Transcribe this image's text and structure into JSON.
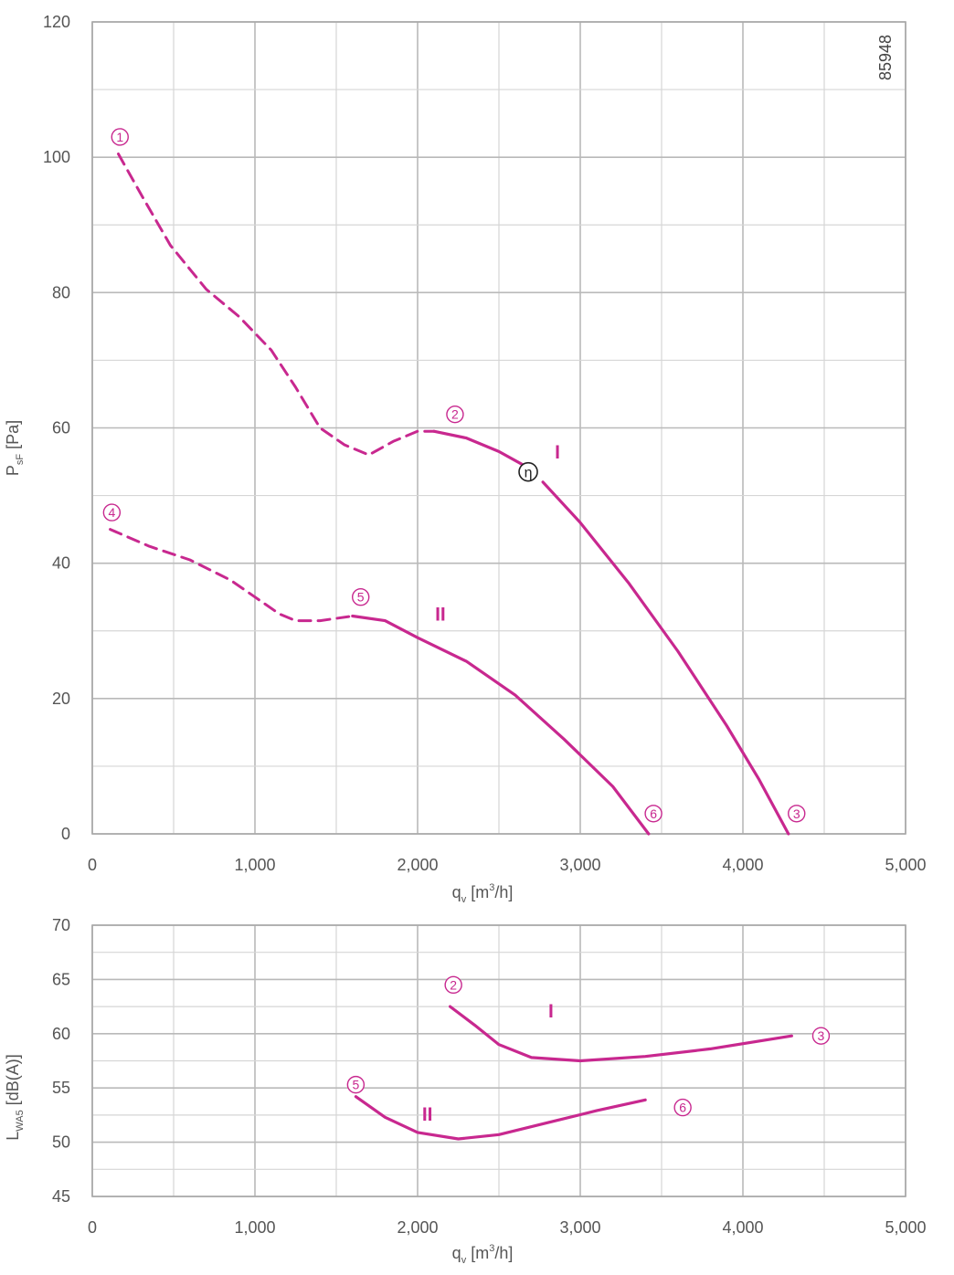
{
  "chart_data": [
    {
      "type": "line",
      "id": "pressure",
      "xlabel": {
        "main": "q",
        "sub": "v",
        "unit_pre": " [m",
        "unit_sup": "3",
        "unit_post": "/h]"
      },
      "ylabel": {
        "main": "P",
        "sub": "sF",
        "unit": " [Pa]"
      },
      "xlim": [
        0,
        5000
      ],
      "ylim": [
        0,
        120
      ],
      "xticks": [
        0,
        1000,
        2000,
        3000,
        4000,
        5000
      ],
      "xtick_labels": [
        "0",
        "1,000",
        "2,000",
        "3,000",
        "4,000",
        "5,000"
      ],
      "yticks": [
        0,
        20,
        40,
        60,
        80,
        100,
        120
      ],
      "ytick_labels": [
        "0",
        "20",
        "40",
        "60",
        "80",
        "100",
        "120"
      ],
      "grid": true,
      "minor_grid": true,
      "annotation": "85948",
      "efficiency_marker": {
        "label": "η",
        "x": 2680,
        "y": 53.5
      },
      "series": [
        {
          "name": "I",
          "color": "#c8288f",
          "label_at": [
            2860,
            55.5
          ],
          "dashed": [
            [
              160,
              100.5
            ],
            [
              300,
              94.5
            ],
            [
              480,
              87
            ],
            [
              700,
              80.5
            ],
            [
              900,
              76.5
            ],
            [
              1100,
              71.5
            ],
            [
              1250,
              66
            ],
            [
              1400,
              60
            ],
            [
              1550,
              57.5
            ],
            [
              1700,
              56
            ],
            [
              1850,
              58
            ],
            [
              2000,
              59.5
            ],
            [
              2100,
              59.5
            ]
          ],
          "solid": [
            [
              2100,
              59.5
            ],
            [
              2300,
              58.5
            ],
            [
              2500,
              56.5
            ],
            [
              2650,
              54.5
            ]
          ],
          "solid2": [
            [
              2770,
              52
            ],
            [
              3000,
              46
            ],
            [
              3300,
              37
            ],
            [
              3600,
              27
            ],
            [
              3900,
              16
            ],
            [
              4100,
              8
            ],
            [
              4280,
              0
            ]
          ],
          "markers": [
            {
              "label": "1",
              "x": 170,
              "y": 103
            },
            {
              "label": "2",
              "x": 2230,
              "y": 62
            },
            {
              "label": "3",
              "x": 4330,
              "y": 3
            }
          ]
        },
        {
          "name": "II",
          "color": "#c8288f",
          "label_at": [
            2140,
            31.5
          ],
          "dashed": [
            [
              110,
              45
            ],
            [
              350,
              42.5
            ],
            [
              600,
              40.5
            ],
            [
              850,
              37.5
            ],
            [
              1000,
              35
            ],
            [
              1150,
              32.5
            ],
            [
              1250,
              31.5
            ],
            [
              1400,
              31.5
            ],
            [
              1600,
              32.2
            ]
          ],
          "solid": [
            [
              1600,
              32.2
            ],
            [
              1800,
              31.5
            ],
            [
              2000,
              29
            ],
            [
              2300,
              25.5
            ],
            [
              2600,
              20.5
            ],
            [
              2900,
              14
            ],
            [
              3200,
              7
            ],
            [
              3420,
              0
            ]
          ],
          "markers": [
            {
              "label": "4",
              "x": 120,
              "y": 47.5
            },
            {
              "label": "5",
              "x": 1650,
              "y": 35
            },
            {
              "label": "6",
              "x": 3450,
              "y": 3
            }
          ]
        }
      ]
    },
    {
      "type": "line",
      "id": "sound",
      "xlabel": {
        "main": "q",
        "sub": "v",
        "unit_pre": " [m",
        "unit_sup": "3",
        "unit_post": "/h]"
      },
      "ylabel": {
        "main": "L",
        "sub": "WA5",
        "unit": " [dB(A)]"
      },
      "xlim": [
        0,
        5000
      ],
      "ylim": [
        45,
        70
      ],
      "xticks": [
        0,
        1000,
        2000,
        3000,
        4000,
        5000
      ],
      "xtick_labels": [
        "0",
        "1,000",
        "2,000",
        "3,000",
        "4,000",
        "5,000"
      ],
      "yticks": [
        45,
        50,
        55,
        60,
        65,
        70
      ],
      "ytick_labels": [
        "45",
        "50",
        "55",
        "60",
        "65",
        "70"
      ],
      "grid": true,
      "minor_grid": true,
      "series": [
        {
          "name": "I",
          "color": "#c8288f",
          "label_at": [
            2820,
            61.5
          ],
          "solid": [
            [
              2200,
              62.5
            ],
            [
              2350,
              60.8
            ],
            [
              2500,
              59
            ],
            [
              2700,
              57.8
            ],
            [
              3000,
              57.5
            ],
            [
              3400,
              57.9
            ],
            [
              3800,
              58.6
            ],
            [
              4300,
              59.8
            ]
          ],
          "markers": [
            {
              "label": "2",
              "x": 2220,
              "y": 64.5
            },
            {
              "label": "3",
              "x": 4480,
              "y": 59.8
            }
          ]
        },
        {
          "name": "II",
          "color": "#c8288f",
          "label_at": [
            2060,
            52
          ],
          "solid": [
            [
              1620,
              54.2
            ],
            [
              1800,
              52.3
            ],
            [
              2000,
              50.9
            ],
            [
              2250,
              50.3
            ],
            [
              2500,
              50.7
            ],
            [
              2800,
              51.8
            ],
            [
              3100,
              52.9
            ],
            [
              3400,
              53.9
            ]
          ],
          "markers": [
            {
              "label": "5",
              "x": 1620,
              "y": 55.3
            },
            {
              "label": "6",
              "x": 3630,
              "y": 53.2
            }
          ]
        }
      ]
    }
  ]
}
